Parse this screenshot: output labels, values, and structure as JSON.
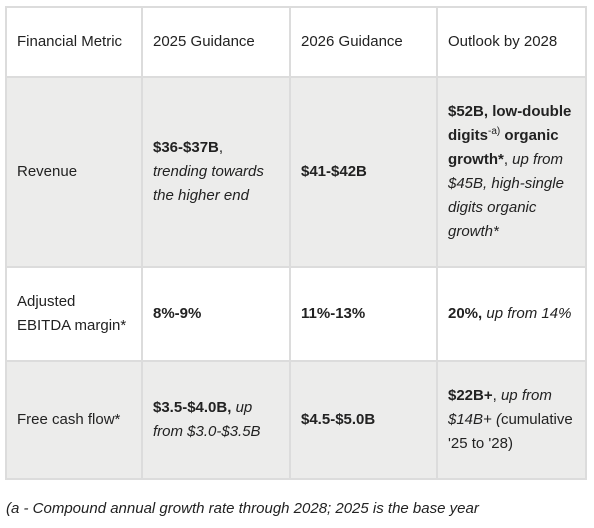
{
  "table": {
    "headers": [
      "Financial Metric",
      "2025 Guidance",
      "2026 Guidance",
      "Outlook by 2028"
    ],
    "rows": {
      "revenue": {
        "metric": "Revenue",
        "g2025_bold": "$36-$37B",
        "g2025_plain": ",",
        "g2025_ital": "trending towards the higher end",
        "g2026_bold": "$41-$42B",
        "outlook_bold1": "$52B, low-double digits",
        "outlook_sup": "-a)",
        "outlook_bold2": "organic growth*",
        "outlook_plain": ",",
        "outlook_ital": "up from $45B, high-single digits organic growth*"
      },
      "ebitda": {
        "metric": "Adjusted EBITDA margin*",
        "g2025_bold": "8%-9%",
        "g2026_bold": "11%-13%",
        "outlook_bold": "20%,",
        "outlook_ital": "up from 14%"
      },
      "fcf": {
        "metric": "Free cash flow*",
        "g2025_bold": "$3.5-$4.0B,",
        "g2025_ital": "up from $3.0-$3.5B",
        "g2026_bold": "$4.5-$5.0B",
        "outlook_bold": "$22B+",
        "outlook_plain1": ",",
        "outlook_ital": "up from $14B+ (",
        "outlook_plain2": "cumulative '25 to '28)"
      }
    }
  },
  "footnote": "(a - Compound annual growth rate through 2028; 2025 is the base year"
}
